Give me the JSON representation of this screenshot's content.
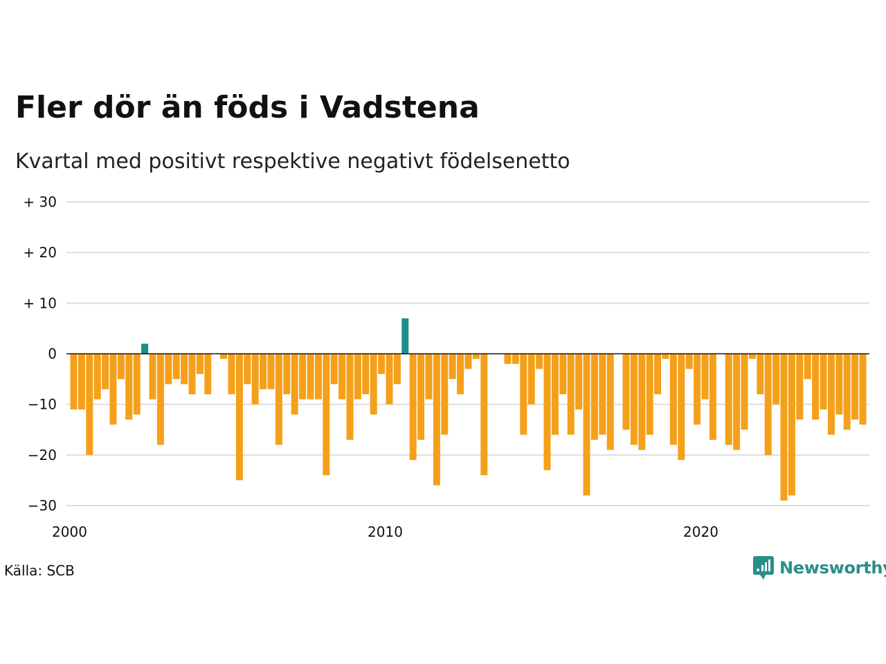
{
  "title": "Fler dör än föds i Vadstena",
  "subtitle": "Kvartal med positivt respektive negativt födelsenetto",
  "source": "Källa: SCB",
  "brand": "Newsworthy",
  "colors": {
    "positive": "#1a9089",
    "negative": "#f5a01a",
    "gridline": "#dddddd",
    "zeroline": "#111111",
    "brand": "#2a8f86"
  },
  "chart_data": {
    "type": "bar",
    "title": "Fler dör än föds i Vadstena",
    "subtitle": "Kvartal med positivt respektive negativt födelsenetto",
    "xlabel": "",
    "ylabel": "",
    "ylim": [
      -30,
      30
    ],
    "grid": true,
    "y_ticks": [
      {
        "value": 30,
        "label": "+ 30"
      },
      {
        "value": 20,
        "label": "+ 20"
      },
      {
        "value": 10,
        "label": "+ 10"
      },
      {
        "value": 0,
        "label": "0"
      },
      {
        "value": -10,
        "label": "−10"
      },
      {
        "value": -20,
        "label": "−20"
      },
      {
        "value": -30,
        "label": "−30"
      }
    ],
    "x_ticks": [
      {
        "value": 2000,
        "label": "2000"
      },
      {
        "value": 2010,
        "label": "2010"
      },
      {
        "value": 2020,
        "label": "2020"
      }
    ],
    "x_start": 2000,
    "values": [
      -11,
      -11,
      -20,
      -9,
      -7,
      -14,
      -5,
      -13,
      -12,
      2,
      -9,
      -18,
      -6,
      -5,
      -6,
      -8,
      -4,
      -8,
      0,
      -1,
      -8,
      -25,
      -6,
      -10,
      -7,
      -7,
      -18,
      -8,
      -12,
      -9,
      -9,
      -9,
      -24,
      -6,
      -9,
      -17,
      -9,
      -8,
      -12,
      -4,
      -10,
      -6,
      7,
      -21,
      -17,
      -9,
      -26,
      -16,
      -5,
      -8,
      -3,
      -1,
      -24,
      0,
      0,
      -2,
      -2,
      -16,
      -10,
      -3,
      -23,
      -16,
      -8,
      -16,
      -11,
      -28,
      -17,
      -16,
      -19,
      0,
      -15,
      -18,
      -19,
      -16,
      -8,
      -1,
      -18,
      -21,
      -3,
      -14,
      -9,
      -17,
      0,
      -18,
      -19,
      -15,
      -1,
      -8,
      -20,
      -10,
      -29,
      -28,
      -13,
      -5,
      -13,
      -11,
      -16,
      -12,
      -15,
      -13,
      -14
    ]
  }
}
